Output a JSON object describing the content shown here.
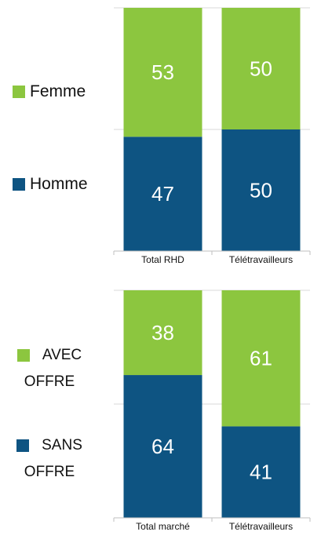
{
  "chart_data": [
    {
      "type": "bar",
      "stacked": true,
      "categories": [
        "Total RHD",
        "Télétravailleurs"
      ],
      "series": [
        {
          "name": "Homme",
          "color": "#0e5482",
          "values": [
            47,
            50
          ]
        },
        {
          "name": "Femme",
          "color": "#8cc63f",
          "values": [
            53,
            50
          ]
        }
      ],
      "ylim": [
        0,
        100
      ],
      "yticks": [
        0,
        50,
        100
      ],
      "grid": true
    },
    {
      "type": "bar",
      "stacked": true,
      "categories": [
        "Total marché",
        "Télétravailleurs"
      ],
      "series": [
        {
          "name": "SANS OFFRE",
          "color": "#0e5482",
          "values": [
            64,
            41
          ]
        },
        {
          "name": "AVEC OFFRE",
          "color": "#8cc63f",
          "values": [
            38,
            61
          ]
        }
      ],
      "ylim": [
        0,
        102
      ],
      "yticks": [
        0,
        51,
        102
      ],
      "grid": true
    }
  ]
}
